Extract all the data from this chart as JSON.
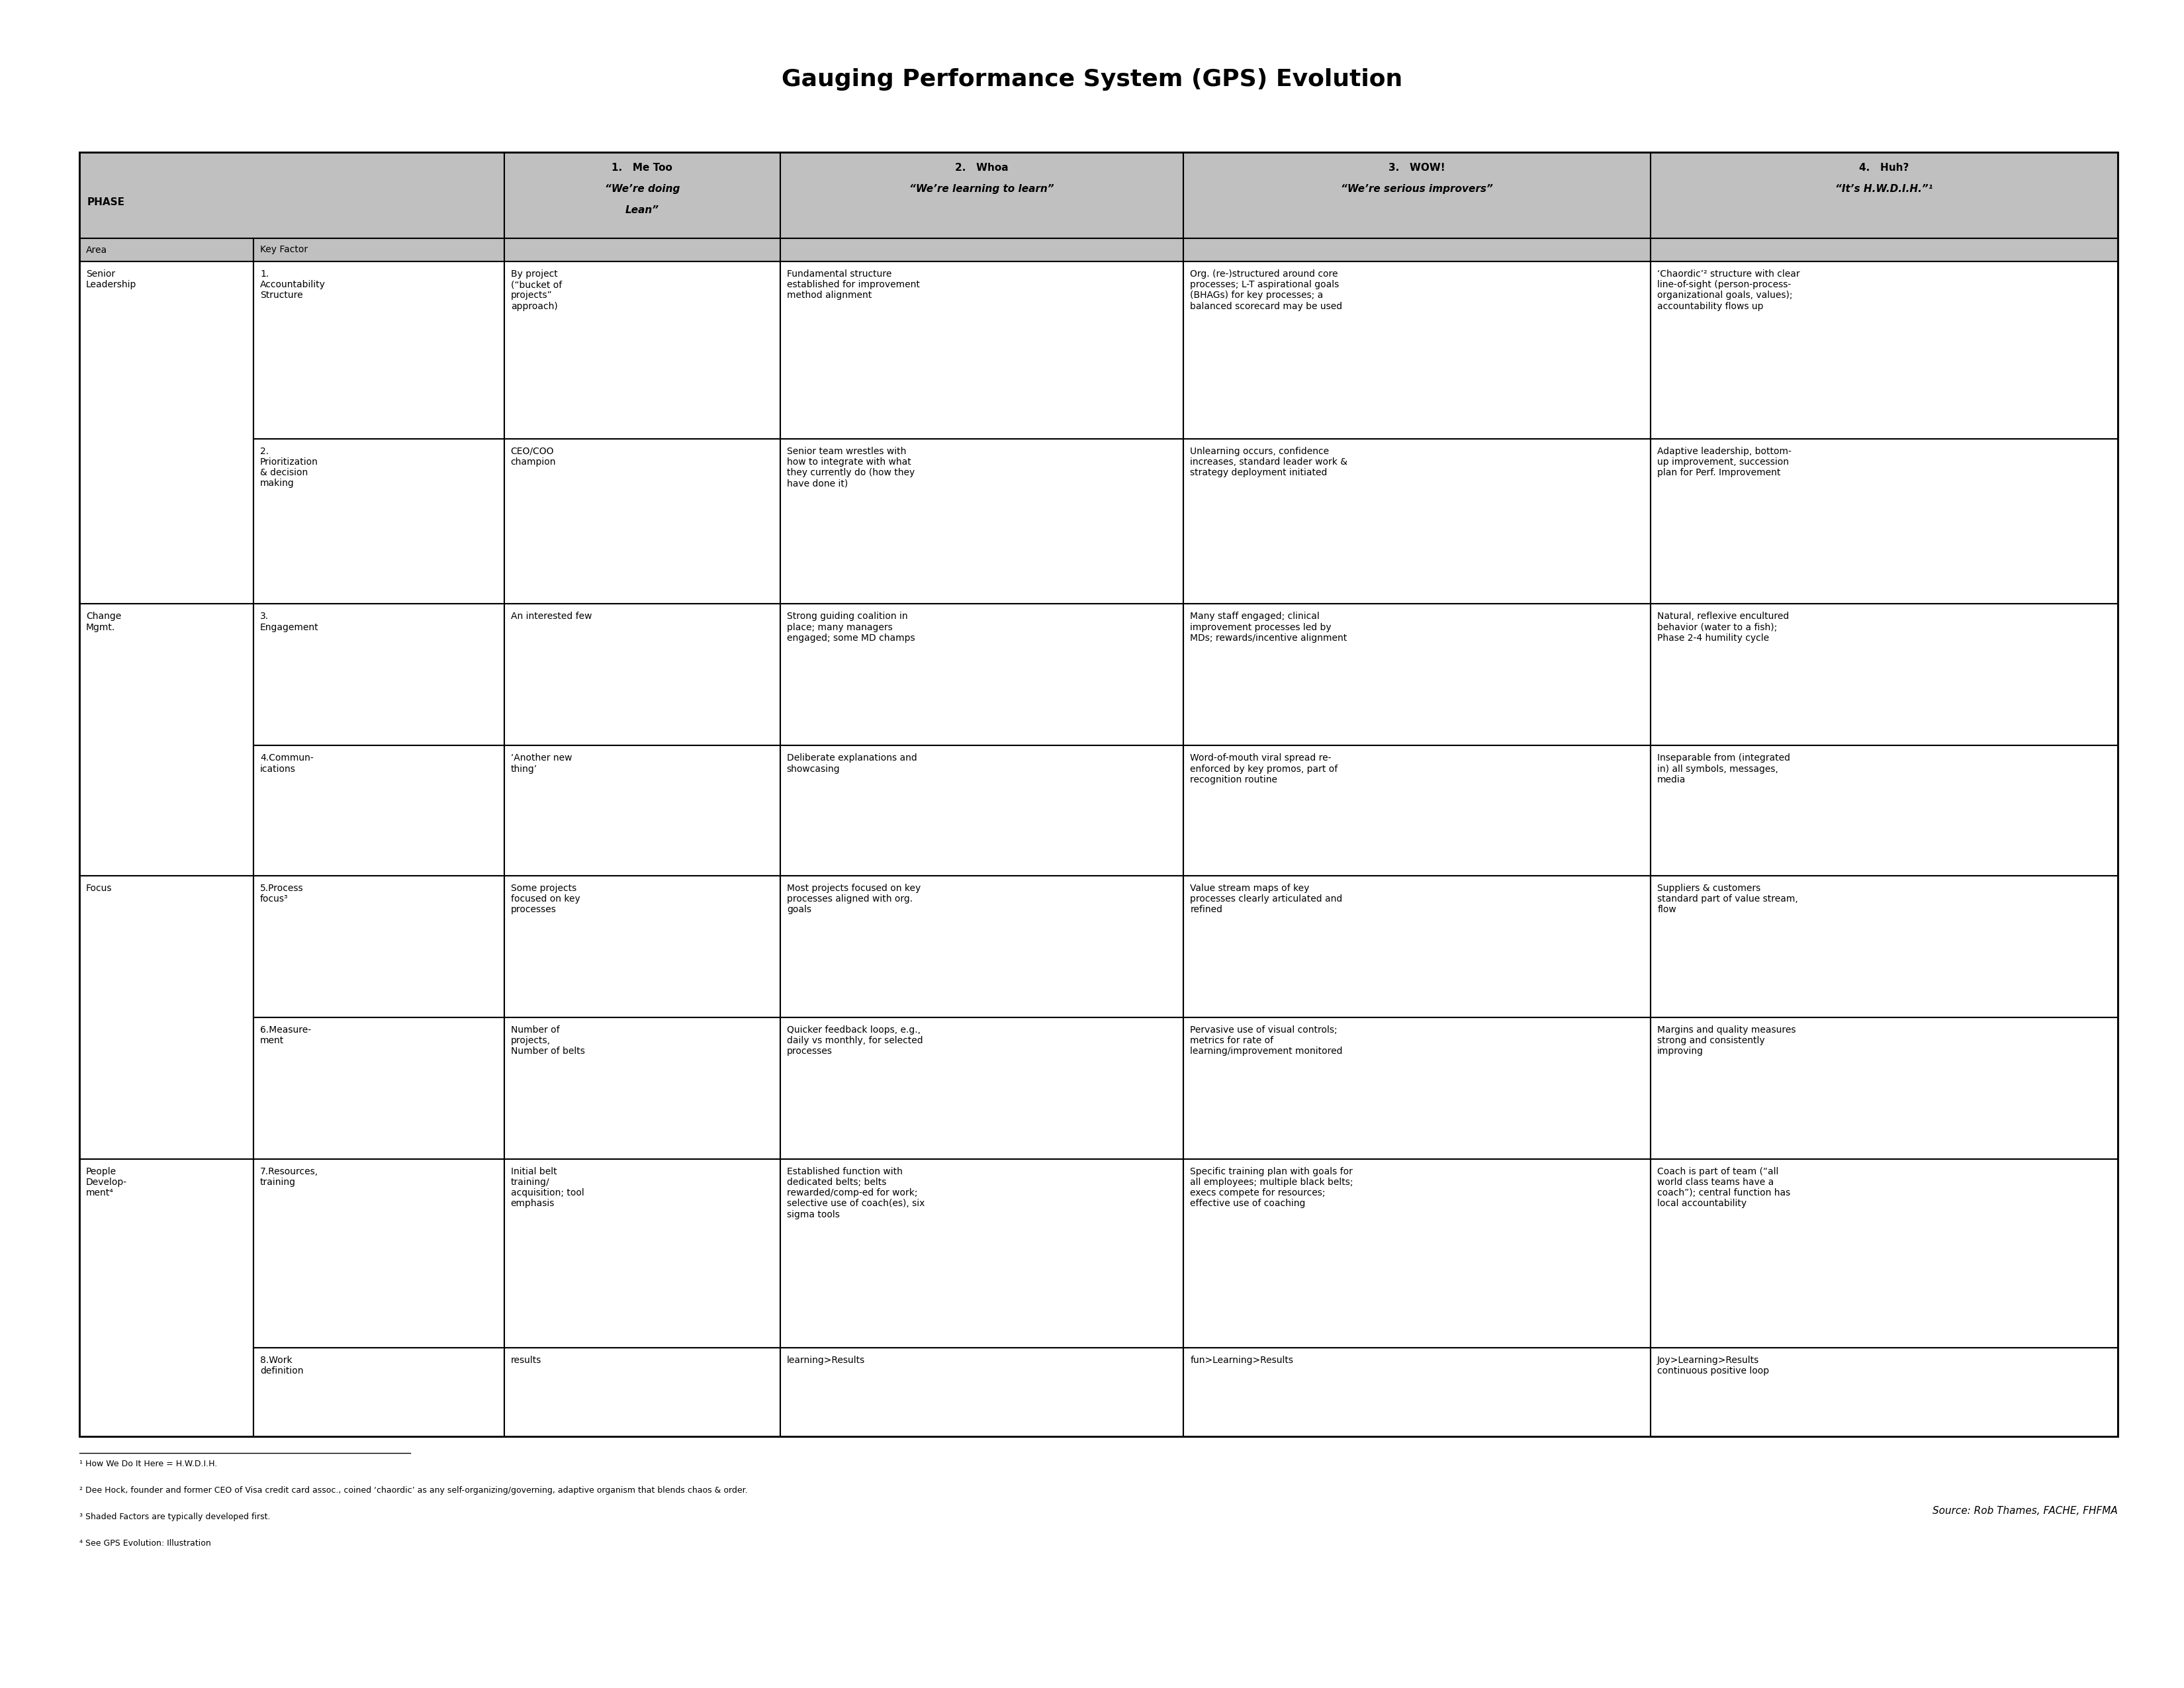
{
  "title": "Gauging Performance System (GPS) Evolution",
  "background_color": "#ffffff",
  "header_bg": "#c0c0c0",
  "subheader_bg": "#d9d9d9",
  "cell_bg": "#ffffff",
  "border_color": "#000000",
  "col_headers": [
    {
      "line1": "",
      "line2": "PHASE",
      "line3": "Area"
    },
    {
      "line1": "",
      "line2": "",
      "line3": "Key Factor"
    },
    {
      "line1": "1.   Me Too",
      "line2": "“We’re doing",
      "line3": "Lean”"
    },
    {
      "line1": "2.   Whoa",
      "line2": "“We’re learning to learn”",
      "line3": ""
    },
    {
      "line1": "3.   WOW!",
      "line2": "“We’re serious improvers”",
      "line3": ""
    },
    {
      "line1": "4.   Huh?",
      "line2": "“It’s H.W.D.I.H.”¹",
      "line3": ""
    }
  ],
  "rows": [
    {
      "area": "Senior\nLeadership",
      "key_factor": "1.\nAccountability\nStructure",
      "col1": "By project\n(“bucket of\nprojects”\napproach)",
      "col2": "Fundamental structure\nestablished for improvement\nmethod alignment",
      "col3": "Org. (re-)structured around core\nprocesses; L-T aspirational goals\n(BHAGs) for key processes; a\nbalanced scorecard may be used",
      "col4": "‘Chaordic’² structure with clear\nline-of-sight (person-process-\norganizational goals, values);\naccountability flows up",
      "area_span": 2
    },
    {
      "area": "",
      "key_factor": "2.\nPrioritization\n& decision\nmaking",
      "col1": "CEO/COO\nchampion",
      "col2": "Senior team wrestles with\nhow to integrate with what\nthey currently do (how they\nhave done it)",
      "col3": "Unlearning occurs, confidence\nincreases, standard leader work &\nstrategy deployment initiated",
      "col4": "Adaptive leadership, bottom-\nup improvement, succession\nplan for Perf. Improvement",
      "area_span": 0
    },
    {
      "area": "Change\nMgmt.",
      "key_factor": "3.\nEngagement",
      "col1": "An interested few",
      "col2": "Strong guiding coalition in\nplace; many managers\nengaged; some MD champs",
      "col3": "Many staff engaged; clinical\nimprovement processes led by\nMDs; rewards/incentive alignment",
      "col4": "Natural, reflexive encultured\nbehavior (water to a fish);\nPhase 2-4 humility cycle",
      "area_span": 2
    },
    {
      "area": "",
      "key_factor": "4.Commun-\nications",
      "col1": "‘Another new\nthing’",
      "col2": "Deliberate explanations and\nshowcasing",
      "col3": "Word-of-mouth viral spread re-\nenforced by key promos, part of\nrecognition routine",
      "col4": "Inseparable from (integrated\nin) all symbols, messages,\nmedia",
      "area_span": 0
    },
    {
      "area": "Focus",
      "key_factor": "5.Process\nfocus³",
      "col1": "Some projects\nfocused on key\nprocesses",
      "col2": "Most projects focused on key\nprocesses aligned with org.\ngoals",
      "col3": "Value stream maps of key\nprocesses clearly articulated and\nrefined",
      "col4": "Suppliers & customers\nstandard part of value stream,\nflow",
      "area_span": 2
    },
    {
      "area": "",
      "key_factor": "6.Measure-\nment",
      "col1": "Number of\nprojects,\nNumber of belts",
      "col2": "Quicker feedback loops, e.g.,\ndaily vs monthly, for selected\nprocesses",
      "col3": "Pervasive use of visual controls;\nmetrics for rate of\nlearning/improvement monitored",
      "col4": "Margins and quality measures\nstrong and consistently\nimproving",
      "area_span": 0
    },
    {
      "area": "People\nDevelop-\nment⁴",
      "key_factor": "7.Resources,\ntraining",
      "col1": "Initial belt\ntraining/\nacquisition; tool\nemphasis",
      "col2": "Established function with\ndedicated belts; belts\nrewarded/comp-ed for work;\nselective use of coach(es), six\nsigma tools",
      "col3": "Specific training plan with goals for\nall employees; multiple black belts;\nexecs compete for resources;\neffective use of coaching",
      "col4": "Coach is part of team (“all\nworld class teams have a\ncoach”); central function has\nlocal accountability",
      "area_span": 2
    },
    {
      "area": "",
      "key_factor": "8.Work\ndefinition",
      "col1": "results",
      "col2": "learning>Results",
      "col3": "fun>Learning>Results",
      "col4": "Joy>Learning>Results\ncontinuous positive loop",
      "area_span": 0
    }
  ],
  "footnotes": [
    "¹ How We Do It Here = H.W.D.I.H.",
    "² Dee Hock, founder and former CEO of Visa credit card assoc., coined ‘chaordic’ as any self-organizing/governing, adaptive organism that blends chaos & order.",
    "³ Shaded Factors are typically developed first.",
    "⁴ See GPS Evolution: Illustration"
  ],
  "source_text": "Source: Rob Thames, FACHE, FHFMA"
}
